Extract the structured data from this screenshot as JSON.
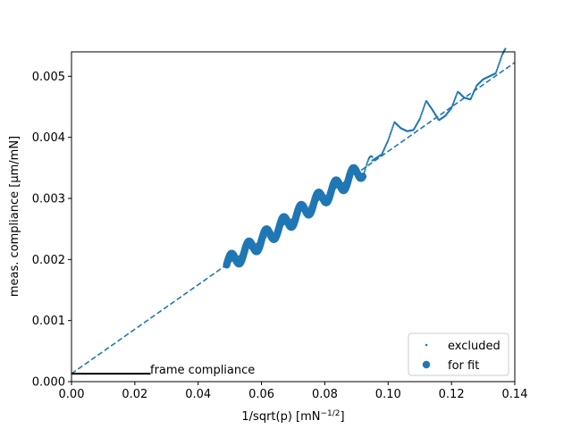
{
  "chart_data": {
    "type": "scatter",
    "title": "",
    "xlabel_main": "1/sqrt(p) [mN",
    "xlabel_sup": "−1/2",
    "xlabel_end": "]",
    "ylabel": "meas. compliance [µm/mN]",
    "xlim": [
      0.0,
      0.14
    ],
    "ylim": [
      0.0,
      0.0054
    ],
    "xticks": [
      0.0,
      0.02,
      0.04,
      0.06,
      0.08,
      0.1,
      0.12,
      0.14
    ],
    "xtick_labels": [
      "0.00",
      "0.02",
      "0.04",
      "0.06",
      "0.08",
      "0.10",
      "0.12",
      "0.14"
    ],
    "yticks": [
      0.0,
      0.001,
      0.002,
      0.003,
      0.004,
      0.005
    ],
    "ytick_labels": [
      "0.000",
      "0.001",
      "0.002",
      "0.003",
      "0.004",
      "0.005"
    ],
    "colors": {
      "series": "#1f77b4",
      "frame_line": "#000000"
    },
    "fit_line": {
      "intercept": 0.00013,
      "slope": 0.0364,
      "style": "dashed"
    },
    "frame_compliance": {
      "label": "frame compliance",
      "value": 0.00013,
      "x_end": 0.025
    },
    "legend": {
      "location": "lower-right",
      "entries": [
        "excluded",
        "for fit"
      ]
    },
    "series": [
      {
        "name": "excluded",
        "marker": "small-dot",
        "segments": [
          {
            "x_start": 0.049,
            "x_end": 0.095,
            "n": 230,
            "amp": 0.00012,
            "period": 0.0055,
            "phase": 0.0
          },
          {
            "x_start": 0.095,
            "x_end": 0.137,
            "n": 210,
            "pts": [
              [
                0.095,
                0.00362
              ],
              [
                0.098,
                0.00372
              ],
              [
                0.1,
                0.00395
              ],
              [
                0.102,
                0.00425
              ],
              [
                0.104,
                0.00415
              ],
              [
                0.106,
                0.0041
              ],
              [
                0.108,
                0.00412
              ],
              [
                0.11,
                0.0043
              ],
              [
                0.112,
                0.0046
              ],
              [
                0.114,
                0.00445
              ],
              [
                0.116,
                0.00428
              ],
              [
                0.118,
                0.00435
              ],
              [
                0.12,
                0.00448
              ],
              [
                0.122,
                0.00475
              ],
              [
                0.124,
                0.00465
              ],
              [
                0.126,
                0.00462
              ],
              [
                0.128,
                0.00485
              ],
              [
                0.13,
                0.00495
              ],
              [
                0.132,
                0.005
              ],
              [
                0.134,
                0.00505
              ],
              [
                0.135,
                0.0052
              ],
              [
                0.136,
                0.00535
              ],
              [
                0.137,
                0.00545
              ]
            ]
          }
        ]
      },
      {
        "name": "for fit",
        "marker": "large-dot",
        "segments": [
          {
            "x_start": 0.049,
            "x_end": 0.092,
            "n": 230,
            "amp": 0.00013,
            "period": 0.0055,
            "phase": 0.0
          }
        ]
      }
    ]
  }
}
